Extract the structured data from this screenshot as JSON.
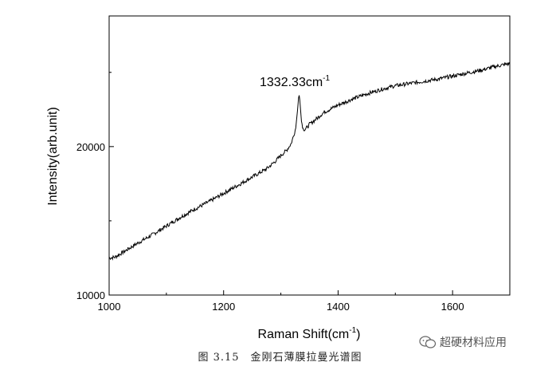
{
  "chart_data": {
    "type": "line",
    "xlabel": "Raman Shift(cm",
    "xlabel_sup": "-1",
    "xlabel_end": ")",
    "ylabel": "Intensity(arb.unit)",
    "xlim": [
      1000,
      1700
    ],
    "ylim": [
      10000,
      28800
    ],
    "x_ticks": [
      1000,
      1200,
      1400,
      1600
    ],
    "x_tick_labels": [
      "1000",
      "1200",
      "1400",
      "1600"
    ],
    "y_ticks": [
      10000,
      20000
    ],
    "y_tick_labels": [
      "10000",
      "20000"
    ],
    "grid": false,
    "annotation": {
      "text": "1332.33cm",
      "sup": "-1",
      "x": 1332.33
    },
    "series": [
      {
        "x": [
          1000,
          1010,
          1025,
          1050,
          1075,
          1100,
          1125,
          1150,
          1175,
          1200,
          1225,
          1250,
          1275,
          1290,
          1300,
          1310,
          1318,
          1322,
          1326,
          1329,
          1331,
          1332.33,
          1334,
          1336,
          1339,
          1342,
          1346,
          1350,
          1360,
          1375,
          1400,
          1425,
          1450,
          1475,
          1500,
          1525,
          1550,
          1575,
          1600,
          1625,
          1650,
          1675,
          1700
        ],
        "y": [
          12500,
          12550,
          12900,
          13500,
          14050,
          14650,
          15250,
          15800,
          16300,
          16850,
          17400,
          17950,
          18500,
          19000,
          19400,
          19750,
          20200,
          20700,
          21250,
          22400,
          23300,
          23500,
          22700,
          21700,
          21200,
          21150,
          21300,
          21500,
          21800,
          22300,
          22800,
          23200,
          23550,
          23850,
          24100,
          24250,
          24400,
          24550,
          24750,
          24950,
          25150,
          25400,
          25600
        ]
      }
    ]
  },
  "caption": "图 3.15　金刚石薄膜拉曼光谱图",
  "watermark": "超硬材料应用"
}
